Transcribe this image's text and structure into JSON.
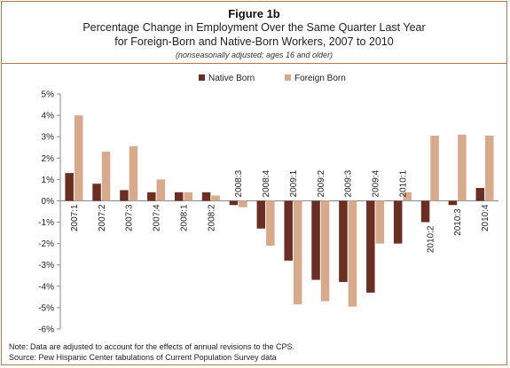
{
  "header": {
    "figure_label": "Figure 1b",
    "title_line1": "Percentage Change in Employment Over the Same Quarter Last Year",
    "title_line2": "for Foreign-Born and Native-Born Workers, 2007 to 2010",
    "subtitle": "(nonseasonally adjusted; ages 16 and older)"
  },
  "notes": {
    "note": "Note: Data are adjusted to account for the effects of annual revisions to the CPS.",
    "source": "Source: Pew Hispanic Center tabulations of Current Population Survey data"
  },
  "colors": {
    "native_born": "#6b2e22",
    "foreign_born": "#d9a98c",
    "frame": "#b07a4f"
  },
  "chart_data": {
    "type": "bar",
    "categories": [
      "2007:1",
      "2007:2",
      "2007:3",
      "2007:4",
      "2008:1",
      "2008:2",
      "2008:3",
      "2008:4",
      "2009:1",
      "2009:2",
      "2009:3",
      "2009:4",
      "2010:1",
      "2010:2",
      "2010:3",
      "2010:4"
    ],
    "series": [
      {
        "name": "Native Born",
        "color": "#6b2e22",
        "values": [
          1.3,
          0.8,
          0.5,
          0.4,
          0.4,
          0.4,
          -0.2,
          -1.3,
          -2.8,
          -3.7,
          -3.8,
          -4.3,
          -2.0,
          -1.0,
          -0.2,
          0.6
        ]
      },
      {
        "name": "Foreign Born",
        "color": "#d9a98c",
        "values": [
          4.0,
          2.3,
          2.55,
          1.0,
          0.4,
          0.25,
          -0.3,
          -2.1,
          -4.85,
          -4.7,
          -4.95,
          -2.0,
          0.4,
          3.05,
          3.1,
          3.05
        ]
      }
    ],
    "ylim": [
      -6,
      5
    ],
    "yticks": [
      "5%",
      "4%",
      "3%",
      "2%",
      "1%",
      "0%",
      "-1%",
      "-2%",
      "-3%",
      "-4%",
      "-5%",
      "-6%"
    ],
    "ytick_values": [
      5,
      4,
      3,
      2,
      1,
      0,
      -1,
      -2,
      -3,
      -4,
      -5,
      -6
    ],
    "legend_position": "top-right",
    "grid": false
  }
}
